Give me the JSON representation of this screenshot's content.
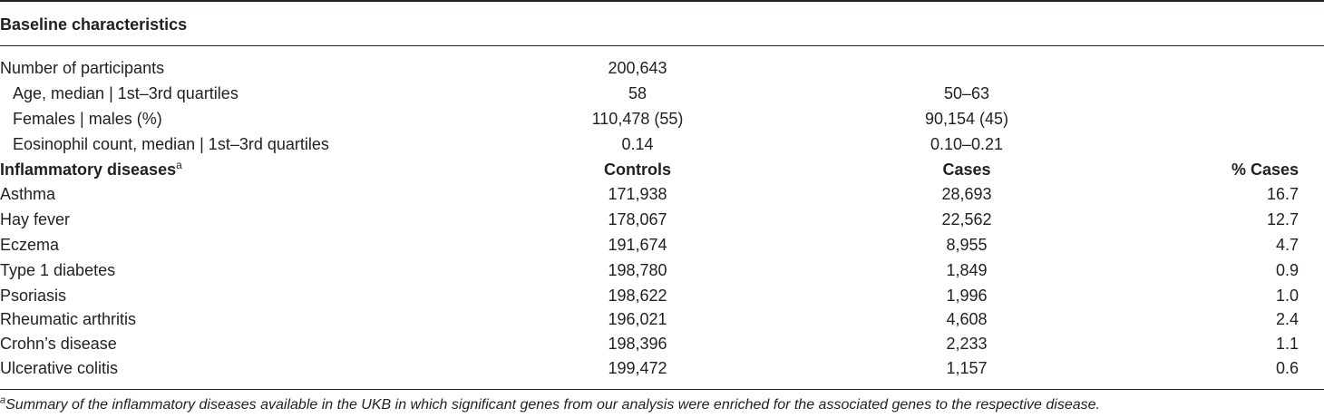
{
  "header": {
    "title": "Baseline characteristics"
  },
  "baseline": {
    "participants": {
      "label": "Number of participants",
      "value": "200,643"
    },
    "rows": [
      {
        "label": "Age, median | 1st–3rd quartiles",
        "v1": "58",
        "v2": "50–63"
      },
      {
        "label": "Females | males (%)",
        "v1": "110,478 (55)",
        "v2": "90,154 (45)"
      },
      {
        "label": "Eosinophil count, median | 1st–3rd quartiles",
        "v1": "0.14",
        "v2": "0.10–0.21"
      }
    ]
  },
  "diseases": {
    "header": {
      "label": "Inflammatory diseases",
      "sup": "a",
      "controls": "Controls",
      "cases": "Cases",
      "pct": "% Cases"
    },
    "rows": [
      {
        "name": "Asthma",
        "controls": "171,938",
        "cases": "28,693",
        "pct": "16.7"
      },
      {
        "name": "Hay fever",
        "controls": "178,067",
        "cases": "22,562",
        "pct": "12.7"
      },
      {
        "name": "Eczema",
        "controls": "191,674",
        "cases": "8,955",
        "pct": "4.7"
      },
      {
        "name": "Type 1 diabetes",
        "controls": "198,780",
        "cases": "1,849",
        "pct": "0.9"
      },
      {
        "name": "Psoriasis",
        "controls": "198,622",
        "cases": "1,996",
        "pct": "1.0"
      },
      {
        "name": "Rheumatic arthritis",
        "controls": "196,021",
        "cases": "4,608",
        "pct": "2.4"
      },
      {
        "name": "Crohn’s disease",
        "controls": "198,396",
        "cases": "2,233",
        "pct": "1.1"
      },
      {
        "name": "Ulcerative colitis",
        "controls": "199,472",
        "cases": "1,157",
        "pct": "0.6"
      }
    ]
  },
  "footnote": {
    "sup": "a",
    "text": "Summary of the inflammatory diseases available in the UKB in which significant genes from our analysis were enriched for the associated genes to the respective disease."
  }
}
